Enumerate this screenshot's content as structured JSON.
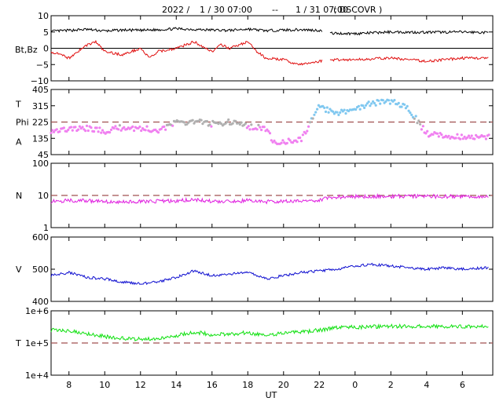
{
  "header": {
    "year": "2022 /",
    "start": "1 / 30   07:00",
    "sep": "--",
    "end": "1 / 31   07:00",
    "source": "( DSCOVR )"
  },
  "x_axis": {
    "label": "UT",
    "range_hours": [
      7,
      31.7
    ],
    "ticks": [
      {
        "h": 8,
        "label": "8"
      },
      {
        "h": 10,
        "label": "10"
      },
      {
        "h": 12,
        "label": "12"
      },
      {
        "h": 14,
        "label": "14"
      },
      {
        "h": 16,
        "label": "16"
      },
      {
        "h": 18,
        "label": "18"
      },
      {
        "h": 20,
        "label": "20"
      },
      {
        "h": 22,
        "label": "22"
      },
      {
        "h": 24,
        "label": "0"
      },
      {
        "h": 26,
        "label": "2"
      },
      {
        "h": 28,
        "label": "4"
      },
      {
        "h": 30,
        "label": "6"
      }
    ]
  },
  "colors": {
    "bt": "#000000",
    "bz": "#e01010",
    "phi_away": "#f080f0",
    "phi_toward": "#80c8f0",
    "phi_neutral": "#b0b0b0",
    "density": "#e020e0",
    "speed": "#1010d0",
    "temperature": "#10e010",
    "reference": "#a05050"
  },
  "chart_data": [
    {
      "type": "line",
      "panel": "magnetic-field",
      "ylabel": "Bt,Bz",
      "ylim": [
        -10,
        10
      ],
      "yticks": [
        {
          "v": 10,
          "label": "10"
        },
        {
          "v": 5,
          "label": "5"
        },
        {
          "v": 0,
          "label": "0"
        },
        {
          "v": -5,
          "label": "−5"
        },
        {
          "v": -10,
          "label": "−10"
        }
      ],
      "gaps": [
        [
          22.2,
          22.6
        ]
      ],
      "series": [
        {
          "key": "bt",
          "x": [
            7,
            8,
            9,
            10,
            11,
            12,
            13,
            14,
            15,
            16,
            17,
            18,
            19,
            20,
            21,
            22,
            22.6,
            24,
            26,
            28,
            30,
            31.5
          ],
          "values": [
            5.2,
            5.5,
            5.8,
            5.3,
            5.6,
            5.5,
            5.7,
            6.0,
            5.8,
            5.6,
            5.5,
            5.9,
            5.4,
            5.6,
            5.7,
            5.5,
            4.6,
            4.5,
            5.0,
            4.9,
            5.0,
            4.8
          ]
        },
        {
          "key": "bz",
          "x": [
            7,
            8,
            9,
            9.5,
            10,
            11,
            12,
            12.5,
            13,
            14,
            14.5,
            15,
            16,
            16.5,
            17,
            18,
            18.5,
            19,
            20,
            20.5,
            21,
            22,
            22.6,
            24,
            26,
            28,
            30,
            31.5
          ],
          "values": [
            -1,
            -3,
            1,
            2,
            -1,
            -2,
            0,
            -3,
            -1,
            0,
            1,
            2,
            -1,
            1,
            0,
            2,
            -1,
            -3,
            -3.5,
            -4.5,
            -5,
            -4,
            -3.5,
            -3.5,
            -3,
            -4,
            -3,
            -3
          ]
        }
      ]
    },
    {
      "type": "scatter",
      "panel": "phi-angle",
      "ylabel_top": "T",
      "ylabel_mid": "Phi",
      "ylabel_bottom": "A",
      "ylim": [
        45,
        405
      ],
      "yticks": [
        {
          "v": 405,
          "label": "405"
        },
        {
          "v": 315,
          "label": "315"
        },
        {
          "v": 225,
          "label": "225"
        },
        {
          "v": 135,
          "label": "135"
        },
        {
          "v": 45,
          "label": "45"
        }
      ],
      "reference": 225,
      "series": [
        {
          "x": [
            7,
            8,
            9,
            10,
            11,
            12,
            13,
            14,
            15,
            16,
            17,
            18,
            19,
            19.5,
            20,
            21,
            22,
            23,
            24,
            25,
            26,
            27,
            28,
            29,
            30,
            31.5
          ],
          "values": [
            180,
            185,
            190,
            175,
            195,
            190,
            180,
            220,
            230,
            215,
            225,
            200,
            190,
            105,
            115,
            130,
            310,
            270,
            300,
            330,
            340,
            300,
            160,
            150,
            145,
            140
          ]
        }
      ]
    },
    {
      "type": "line",
      "panel": "density",
      "ylabel": "N",
      "log": true,
      "ylim": [
        1,
        100
      ],
      "yticks": [
        {
          "v": 100,
          "label": "100"
        },
        {
          "v": 10,
          "label": "10"
        },
        {
          "v": 1,
          "label": "1"
        }
      ],
      "reference": 10,
      "series": [
        {
          "key": "density",
          "x": [
            7,
            8,
            9,
            10,
            11,
            12,
            13,
            14,
            15,
            16,
            17,
            18,
            19,
            20,
            21,
            22,
            23,
            24,
            25,
            26,
            27,
            28,
            29,
            30,
            31.5
          ],
          "values": [
            6.5,
            7,
            6.8,
            6.5,
            6.2,
            6.4,
            6.6,
            6.8,
            7.5,
            6.5,
            6.3,
            7.0,
            6.4,
            6.6,
            6.8,
            7.2,
            9.0,
            9.2,
            9.3,
            9.4,
            9.5,
            9.4,
            9.3,
            9.3,
            9.3
          ]
        }
      ]
    },
    {
      "type": "line",
      "panel": "speed",
      "ylabel": "V",
      "ylim": [
        400,
        600
      ],
      "yticks": [
        {
          "v": 600,
          "label": "600"
        },
        {
          "v": 500,
          "label": "500"
        },
        {
          "v": 400,
          "label": "400"
        }
      ],
      "series": [
        {
          "key": "speed",
          "x": [
            7,
            8,
            9,
            10,
            11,
            12,
            13,
            14,
            15,
            16,
            17,
            18,
            19,
            20,
            21,
            22,
            23,
            24,
            25,
            26,
            27,
            28,
            29,
            30,
            31.5
          ],
          "values": [
            480,
            490,
            475,
            470,
            460,
            455,
            460,
            475,
            495,
            480,
            485,
            490,
            470,
            480,
            490,
            495,
            500,
            510,
            515,
            510,
            505,
            500,
            505,
            500,
            505
          ]
        }
      ]
    },
    {
      "type": "line",
      "panel": "temperature",
      "ylabel": "T",
      "log": true,
      "ylim": [
        10000,
        1000000
      ],
      "yticks": [
        {
          "v": 1000000,
          "label": "1e+6"
        },
        {
          "v": 100000,
          "label": "1e+5"
        },
        {
          "v": 10000,
          "label": "1e+4"
        }
      ],
      "reference": 100000,
      "series": [
        {
          "key": "temperature",
          "x": [
            7,
            8,
            9,
            10,
            11,
            12,
            13,
            14,
            15,
            16,
            17,
            18,
            19,
            20,
            21,
            22,
            23,
            24,
            25,
            26,
            27,
            28,
            29,
            30,
            31.5
          ],
          "values": [
            250000,
            240000,
            200000,
            160000,
            140000,
            130000,
            140000,
            170000,
            220000,
            180000,
            190000,
            210000,
            170000,
            200000,
            220000,
            250000,
            300000,
            310000,
            320000,
            330000,
            330000,
            335000,
            330000,
            330000,
            330000
          ]
        }
      ]
    }
  ]
}
